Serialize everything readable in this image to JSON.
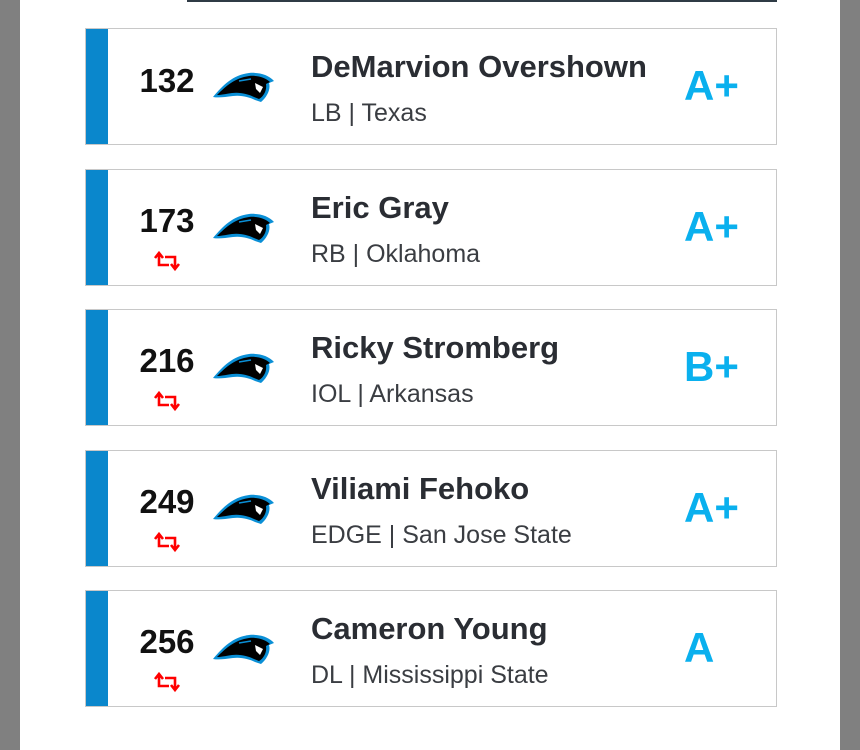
{
  "colors": {
    "accent_bar": "#0a87cc",
    "grade": "#0ab0ee",
    "trade_icon": "#ff0000"
  },
  "picks": [
    {
      "number": "132",
      "name": "DeMarvion Overshown",
      "details": "LB | Texas",
      "grade": "A+",
      "traded": false,
      "logo": "panthers-logo"
    },
    {
      "number": "173",
      "name": "Eric Gray",
      "details": "RB | Oklahoma",
      "grade": "A+",
      "traded": true,
      "logo": "panthers-logo"
    },
    {
      "number": "216",
      "name": "Ricky Stromberg",
      "details": "IOL | Arkansas",
      "grade": "B+",
      "traded": true,
      "logo": "panthers-logo"
    },
    {
      "number": "249",
      "name": "Viliami Fehoko",
      "details": "EDGE | San Jose State",
      "grade": "A+",
      "traded": true,
      "logo": "panthers-logo"
    },
    {
      "number": "256",
      "name": "Cameron Young",
      "details": "DL | Mississippi State",
      "grade": "A",
      "traded": true,
      "logo": "panthers-logo"
    }
  ]
}
